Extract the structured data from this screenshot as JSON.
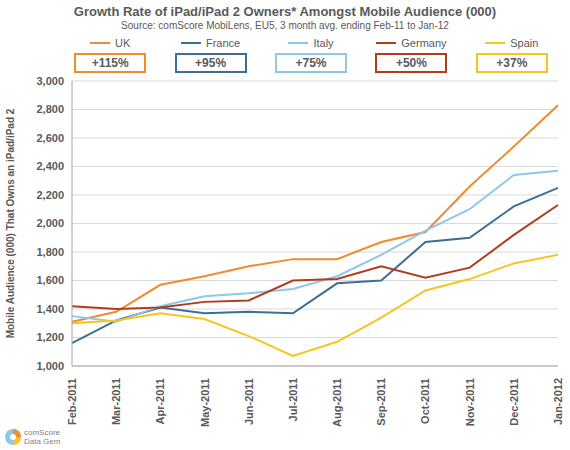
{
  "chart_data": {
    "type": "line",
    "title": "Growth Rate of iPad/iPad 2 Owners* Amongst Mobile Audience (000)",
    "subtitle": "Source: comScore MobiLens, EU5, 3 month avg. ending Feb-11 to Jan-12",
    "y_label": "Mobile Audience (000) That Owns an iPad/iPad 2",
    "logo_lines": [
      "comScore",
      "Data Gem"
    ],
    "categories": [
      "Feb-2011",
      "Mar-2011",
      "Apr-2011",
      "May-2011",
      "Jun-2011",
      "Jul-2011",
      "Aug-2011",
      "Sep-2011",
      "Oct-2011",
      "Nov-2011",
      "Dec-2011",
      "Jan-2012"
    ],
    "series": [
      {
        "name": "UK",
        "color": "#f28a2e",
        "annotation": "+115%",
        "values": [
          1310,
          1380,
          1570,
          1630,
          1700,
          1750,
          1750,
          1870,
          1940,
          2260,
          2540,
          2830
        ]
      },
      {
        "name": "France",
        "color": "#3c6e96",
        "annotation": "+95%",
        "values": [
          1160,
          1320,
          1410,
          1370,
          1380,
          1370,
          1580,
          1600,
          1870,
          1900,
          2120,
          2250
        ]
      },
      {
        "name": "Italy",
        "color": "#8dc8ea",
        "annotation": "+75%",
        "values": [
          1350,
          1310,
          1420,
          1490,
          1510,
          1540,
          1630,
          1780,
          1950,
          2100,
          2340,
          2370
        ]
      },
      {
        "name": "Germany",
        "color": "#b23c1c",
        "annotation": "+50%",
        "values": [
          1420,
          1400,
          1410,
          1450,
          1460,
          1600,
          1610,
          1700,
          1620,
          1690,
          1920,
          2130
        ]
      },
      {
        "name": "Spain",
        "color": "#f7c51e",
        "annotation": "+37%",
        "values": [
          1300,
          1320,
          1370,
          1330,
          1210,
          1070,
          1170,
          1340,
          1530,
          1610,
          1720,
          1780
        ]
      }
    ],
    "ylim": [
      1000,
      3000
    ],
    "yticks": [
      {
        "value": 1000,
        "label": "1,000"
      },
      {
        "value": 1200,
        "label": "1,200"
      },
      {
        "value": 1400,
        "label": "1,400"
      },
      {
        "value": 1600,
        "label": "1,600"
      },
      {
        "value": 1800,
        "label": "1,800"
      },
      {
        "value": 2000,
        "label": "2,000"
      },
      {
        "value": 2200,
        "label": "2,200"
      },
      {
        "value": 2400,
        "label": "2,400"
      },
      {
        "value": 2600,
        "label": "2,600"
      },
      {
        "value": 2800,
        "label": "2,800"
      },
      {
        "value": 3000,
        "label": "3,000"
      }
    ],
    "grid": true
  }
}
